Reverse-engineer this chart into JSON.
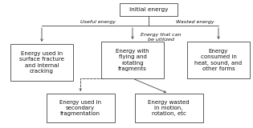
{
  "box_texts": {
    "initial": "Initial energy",
    "box_left": "Energy used in\nsurface fracture\nand internal\ncracking",
    "box_mid": "Energy with\nflying and\nrotating\nfragments",
    "box_right": "Energy\nconsumed in\nheat, sound, and\nother forms",
    "box_bl": "Energy used in\nsecondary\nfragmentation",
    "box_br": "Energy wasted\nin motion,\nrotation, etc"
  },
  "labels": {
    "useful": "Useful energy",
    "wasted": "Wasted energy",
    "utilized": "Energy that can\nbe utilized"
  },
  "bg_color": "#ffffff",
  "box_color": "#ffffff",
  "edge_color": "#444444",
  "text_color": "#111111",
  "fontsize": 5.0
}
